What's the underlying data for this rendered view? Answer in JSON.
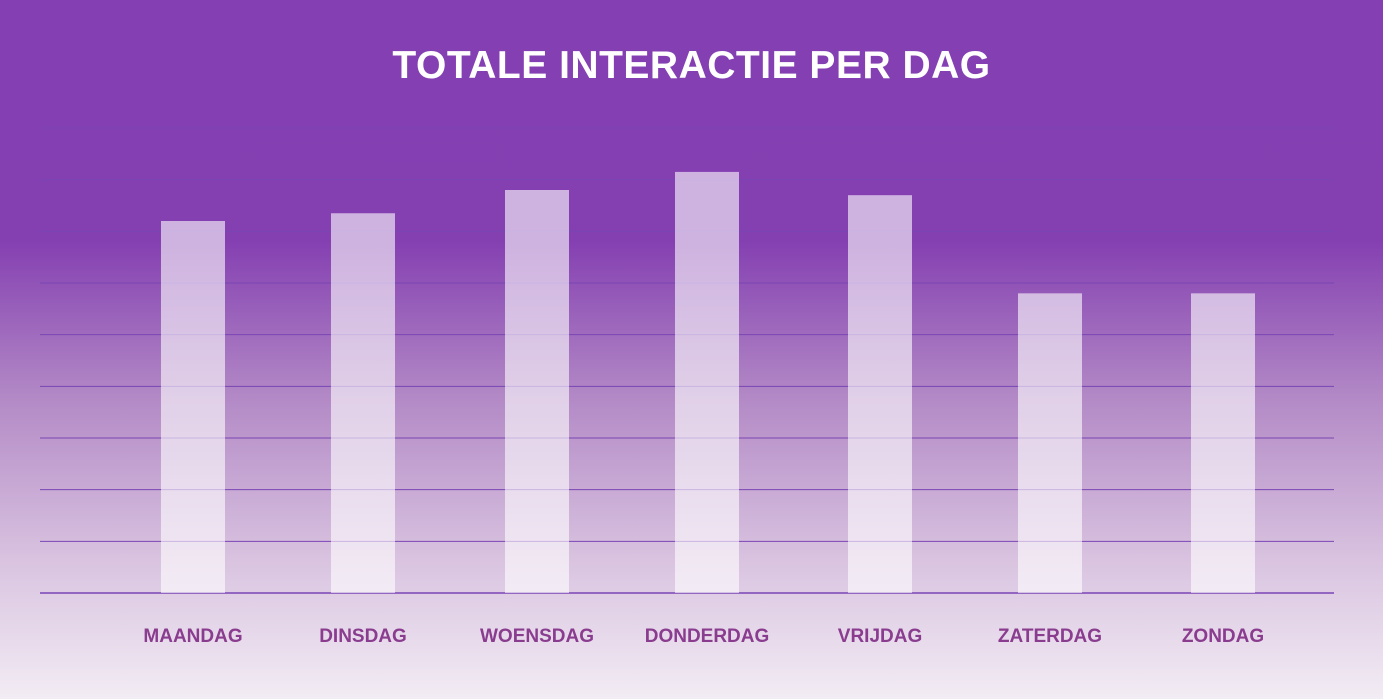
{
  "chart_data": {
    "type": "bar",
    "title": "TOTALE INTERACTIE PER DAG",
    "xlabel": "",
    "ylabel": "",
    "categories": [
      "MAANDAG",
      "DINSDAG",
      "WOENSDAG",
      "DONDERDAG",
      "VRIJDAG",
      "ZATERDAG",
      "ZONDAG"
    ],
    "values": [
      7.2,
      7.35,
      7.8,
      8.15,
      7.7,
      5.8,
      5.8
    ],
    "ylim": [
      0,
      9
    ],
    "gridlines": 9,
    "grid": true,
    "legend": "none"
  },
  "colors": {
    "background_top": "#8440b2",
    "background_bottom": "#f2ecf4",
    "gridline": "#7a45b5",
    "bar": "#ffffff",
    "category_label": "#8a3c8f",
    "title": "#ffffff"
  }
}
